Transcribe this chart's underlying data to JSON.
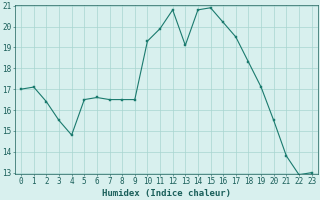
{
  "x": [
    0,
    1,
    2,
    3,
    4,
    5,
    6,
    7,
    8,
    9,
    10,
    11,
    12,
    13,
    14,
    15,
    16,
    17,
    18,
    19,
    20,
    21,
    22,
    23
  ],
  "y": [
    17.0,
    17.1,
    16.4,
    15.5,
    14.8,
    16.5,
    16.6,
    16.5,
    16.5,
    16.5,
    19.3,
    19.9,
    20.8,
    19.1,
    20.8,
    20.9,
    20.2,
    19.5,
    18.3,
    17.1,
    15.5,
    13.8,
    12.9,
    13.0
  ],
  "line_color": "#1a7a6e",
  "marker": "s",
  "marker_size": 2,
  "bg_color": "#d8f0ee",
  "grid_color": "#a8d5d0",
  "xlabel": "Humidex (Indice chaleur)",
  "xlim": [
    -0.5,
    23.5
  ],
  "ylim": [
    13,
    21
  ],
  "yticks": [
    13,
    14,
    15,
    16,
    17,
    18,
    19,
    20,
    21
  ],
  "xticks": [
    0,
    1,
    2,
    3,
    4,
    5,
    6,
    7,
    8,
    9,
    10,
    11,
    12,
    13,
    14,
    15,
    16,
    17,
    18,
    19,
    20,
    21,
    22,
    23
  ],
  "tick_color": "#1a5f5a",
  "label_fontsize": 6.5,
  "tick_fontsize": 5.5
}
